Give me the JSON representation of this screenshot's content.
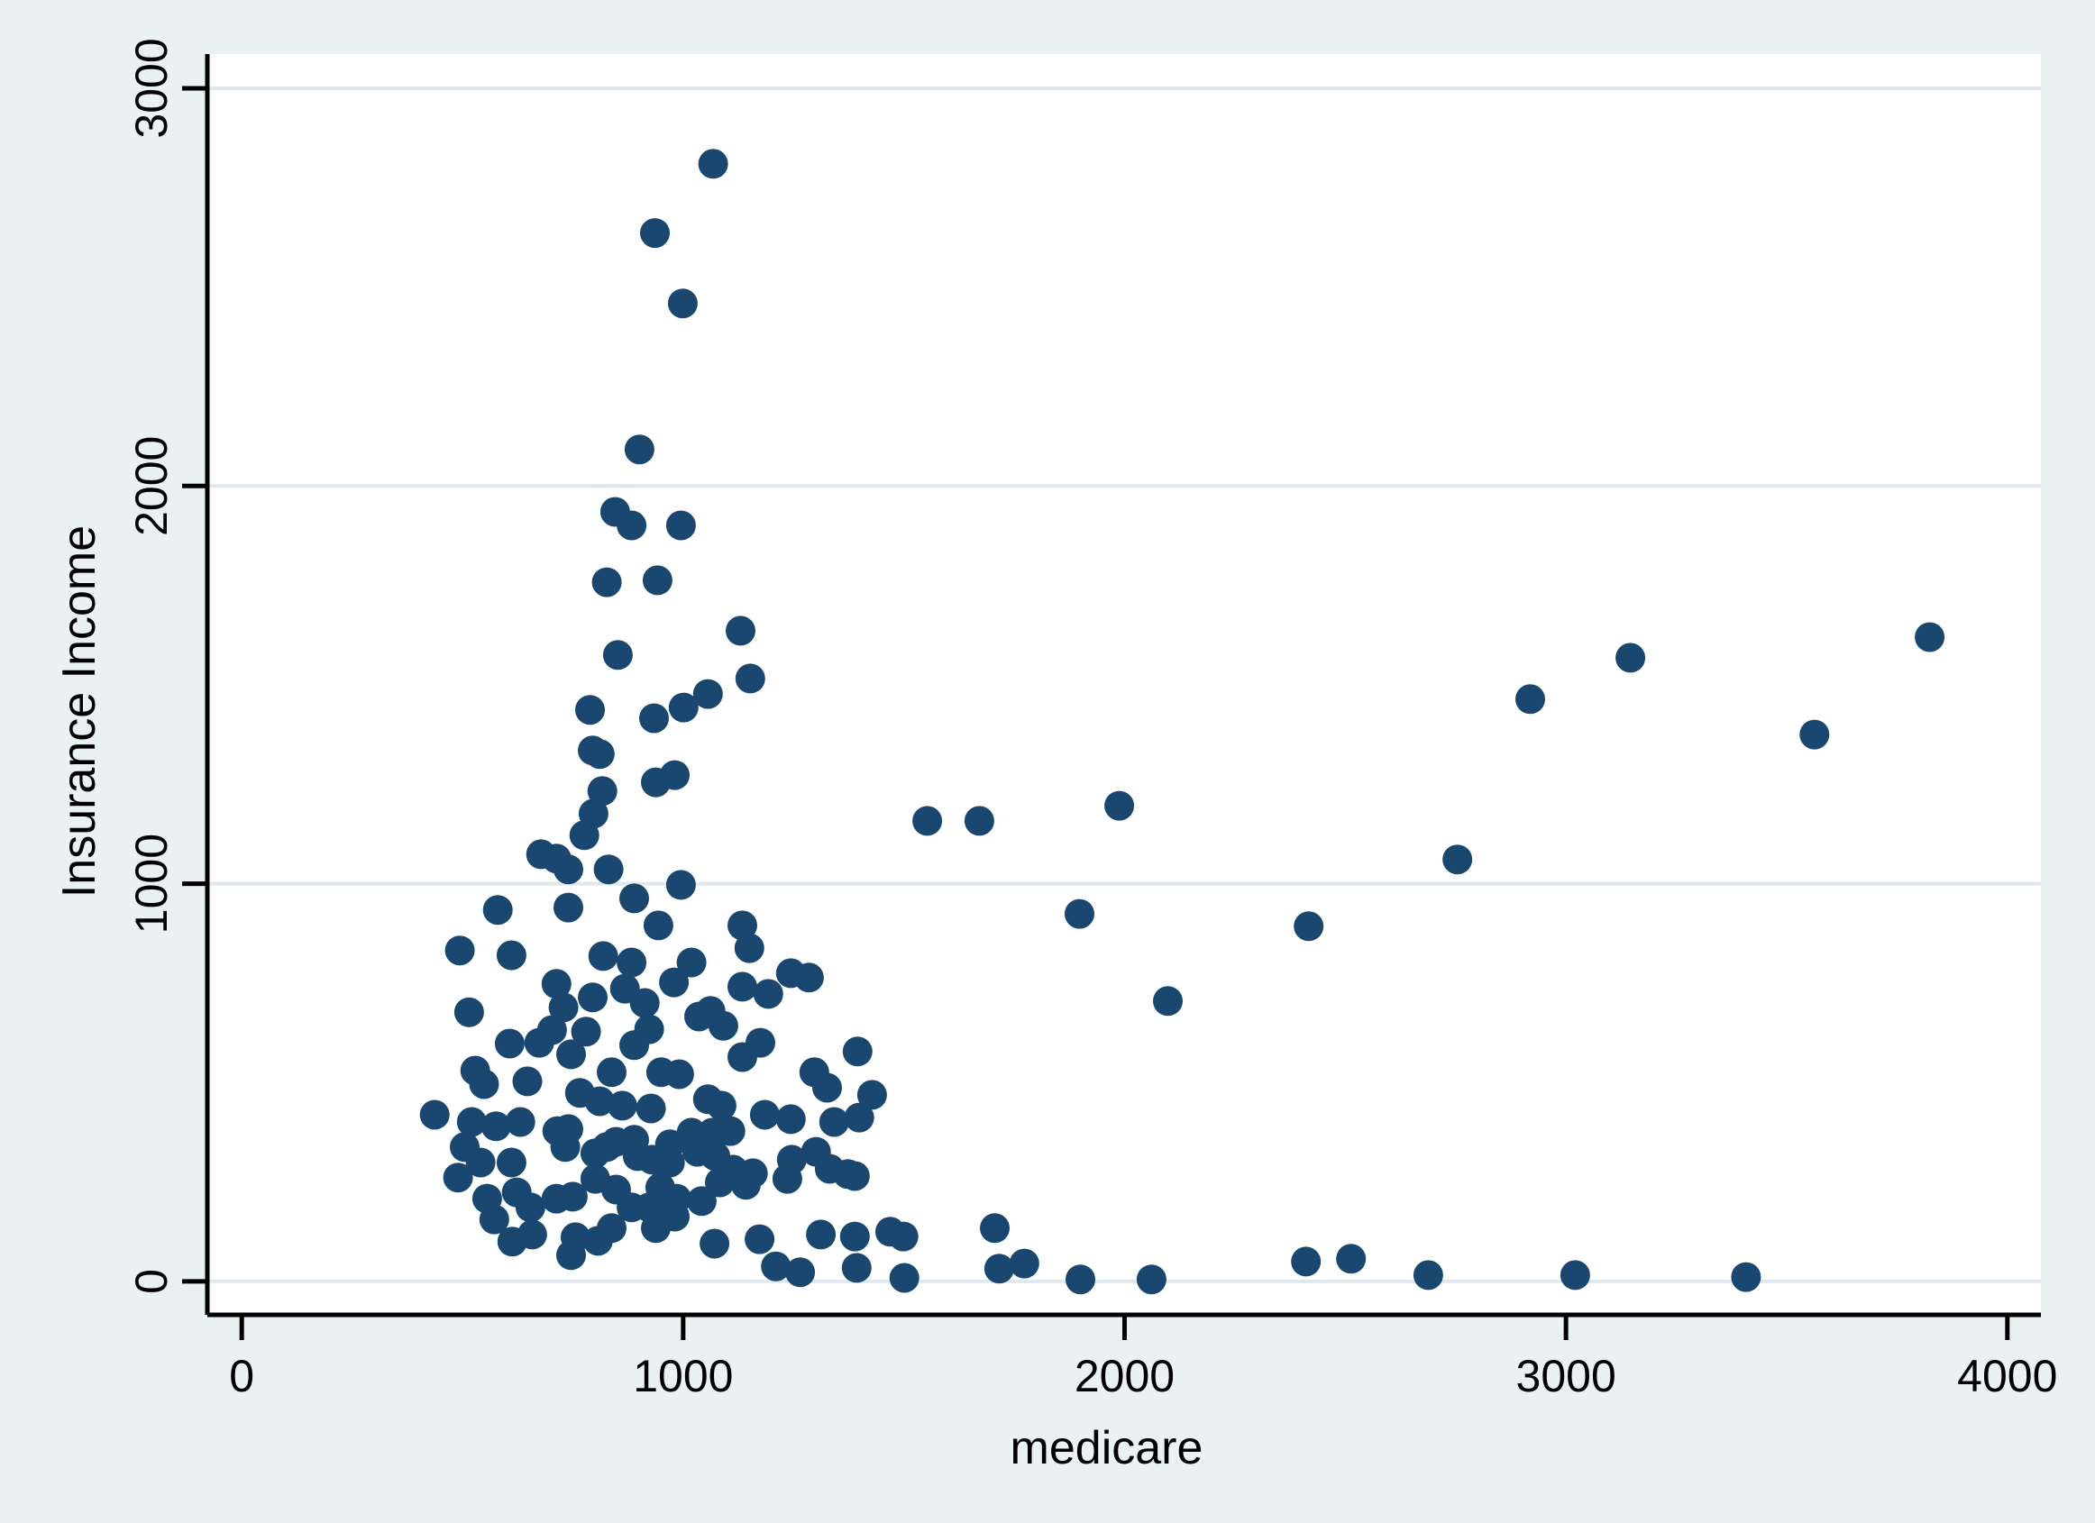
{
  "window": {
    "background_color": "#eaf1f3"
  },
  "chart_data": {
    "type": "scatter",
    "title": "",
    "xlabel": "medicare",
    "ylabel": "Insurance Income",
    "x_ticks": [
      0,
      1000,
      2000,
      3000,
      4000
    ],
    "y_ticks": [
      0,
      1000,
      2000,
      3000
    ],
    "xlim": [
      -78,
      4076
    ],
    "ylim": [
      -84,
      3086
    ],
    "grid": "horizontal",
    "legend": "none",
    "style": {
      "marker_color": "#1a476f",
      "plot_background": "#ffffff",
      "outer_background": "#eaf1f3",
      "gridline_color": "#dfe9ed",
      "axis_color": "#000000"
    },
    "points": [
      [
        1068,
        2810
      ],
      [
        936,
        2636
      ],
      [
        999,
        2459
      ],
      [
        901,
        2092
      ],
      [
        846,
        1935
      ],
      [
        883,
        1901
      ],
      [
        995,
        1901
      ],
      [
        827,
        1758
      ],
      [
        942,
        1763
      ],
      [
        1130,
        1636
      ],
      [
        852,
        1575
      ],
      [
        1152,
        1516
      ],
      [
        1056,
        1477
      ],
      [
        789,
        1437
      ],
      [
        1001,
        1443
      ],
      [
        934,
        1416
      ],
      [
        795,
        1335
      ],
      [
        811,
        1326
      ],
      [
        981,
        1273
      ],
      [
        938,
        1255
      ],
      [
        817,
        1233
      ],
      [
        797,
        1176
      ],
      [
        776,
        1122
      ],
      [
        678,
        1074
      ],
      [
        713,
        1063
      ],
      [
        740,
        1036
      ],
      [
        831,
        1036
      ],
      [
        995,
        997
      ],
      [
        889,
        963
      ],
      [
        944,
        895
      ],
      [
        580,
        934
      ],
      [
        740,
        940
      ],
      [
        1134,
        895
      ],
      [
        494,
        832
      ],
      [
        611,
        820
      ],
      [
        819,
        818
      ],
      [
        883,
        802
      ],
      [
        1150,
        838
      ],
      [
        979,
        752
      ],
      [
        1019,
        802
      ],
      [
        1244,
        775
      ],
      [
        713,
        748
      ],
      [
        729,
        689
      ],
      [
        795,
        714
      ],
      [
        868,
        736
      ],
      [
        913,
        700
      ],
      [
        1062,
        680
      ],
      [
        1134,
        741
      ],
      [
        1193,
        723
      ],
      [
        515,
        677
      ],
      [
        703,
        632
      ],
      [
        780,
        628
      ],
      [
        889,
        594
      ],
      [
        923,
        634
      ],
      [
        1036,
        666
      ],
      [
        1091,
        643
      ],
      [
        1175,
        600
      ],
      [
        1285,
        764
      ],
      [
        607,
        598
      ],
      [
        674,
        600
      ],
      [
        1134,
        564
      ],
      [
        746,
        571
      ],
      [
        529,
        530
      ],
      [
        549,
        496
      ],
      [
        647,
        503
      ],
      [
        838,
        526
      ],
      [
        950,
        526
      ],
      [
        991,
        521
      ],
      [
        1297,
        526
      ],
      [
        1326,
        487
      ],
      [
        766,
        474
      ],
      [
        811,
        453
      ],
      [
        862,
        442
      ],
      [
        927,
        435
      ],
      [
        1056,
        458
      ],
      [
        1087,
        442
      ],
      [
        1185,
        419
      ],
      [
        437,
        419
      ],
      [
        521,
        401
      ],
      [
        576,
        390
      ],
      [
        631,
        401
      ],
      [
        740,
        383
      ],
      [
        848,
        351
      ],
      [
        889,
        356
      ],
      [
        970,
        345
      ],
      [
        1019,
        374
      ],
      [
        1066,
        374
      ],
      [
        1107,
        378
      ],
      [
        1244,
        408
      ],
      [
        505,
        338
      ],
      [
        541,
        299
      ],
      [
        611,
        299
      ],
      [
        715,
        378
      ],
      [
        733,
        338
      ],
      [
        801,
        322
      ],
      [
        827,
        338
      ],
      [
        897,
        315
      ],
      [
        930,
        306
      ],
      [
        970,
        299
      ],
      [
        1032,
        326
      ],
      [
        1073,
        315
      ],
      [
        1113,
        281
      ],
      [
        1158,
        272
      ],
      [
        1246,
        306
      ],
      [
        1301,
        326
      ],
      [
        1332,
        283
      ],
      [
        490,
        261
      ],
      [
        556,
        208
      ],
      [
        623,
        224
      ],
      [
        654,
        186
      ],
      [
        713,
        208
      ],
      [
        750,
        213
      ],
      [
        801,
        258
      ],
      [
        848,
        231
      ],
      [
        948,
        236
      ],
      [
        985,
        208
      ],
      [
        1042,
        202
      ],
      [
        1083,
        249
      ],
      [
        1142,
        243
      ],
      [
        1236,
        258
      ],
      [
        572,
        156
      ],
      [
        658,
        118
      ],
      [
        981,
        163
      ],
      [
        613,
        100
      ],
      [
        746,
        66
      ],
      [
        756,
        111
      ],
      [
        807,
        102
      ],
      [
        838,
        134
      ],
      [
        883,
        186
      ],
      [
        923,
        186
      ],
      [
        938,
        134
      ],
      [
        1071,
        95
      ],
      [
        1173,
        106
      ],
      [
        1210,
        38
      ],
      [
        1265,
        23
      ],
      [
        1312,
        118
      ],
      [
        1395,
        578
      ],
      [
        1428,
        469
      ],
      [
        1399,
        412
      ],
      [
        1342,
        401
      ],
      [
        1373,
        270
      ],
      [
        1389,
        265
      ],
      [
        1389,
        113
      ],
      [
        1469,
        125
      ],
      [
        1499,
        113
      ],
      [
        1393,
        34
      ],
      [
        1501,
        9
      ],
      [
        1706,
        134
      ],
      [
        1716,
        32
      ],
      [
        1773,
        45
      ],
      [
        1900,
        5
      ],
      [
        2061,
        5
      ],
      [
        2098,
        705
      ],
      [
        1553,
        1158
      ],
      [
        1671,
        1158
      ],
      [
        1988,
        1196
      ],
      [
        1898,
        924
      ],
      [
        2417,
        893
      ],
      [
        2411,
        50
      ],
      [
        2513,
        57
      ],
      [
        2688,
        16
      ],
      [
        3021,
        16
      ],
      [
        3408,
        11
      ],
      [
        2754,
        1061
      ],
      [
        2919,
        1464
      ],
      [
        3146,
        1568
      ],
      [
        3563,
        1375
      ],
      [
        3824,
        1620
      ]
    ]
  }
}
